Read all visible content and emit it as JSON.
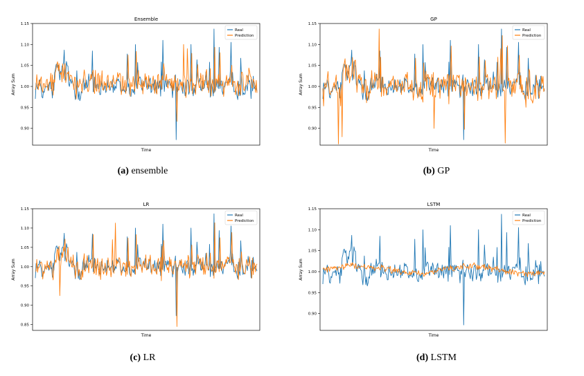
{
  "figure": {
    "captions": [
      {
        "label": "(a)",
        "text": "ensemble"
      },
      {
        "label": "(b)",
        "text": "GP"
      },
      {
        "label": "(c)",
        "text": "LR"
      },
      {
        "label": "(d)",
        "text": "LSTM"
      }
    ]
  },
  "colors": {
    "real": "#1f77b4",
    "prediction": "#ff7f0e"
  },
  "chart_data": [
    {
      "type": "line",
      "title": "Ensemble",
      "xlabel": "Time",
      "ylabel": "Array Sum",
      "ylim": [
        0.86,
        1.15
      ],
      "yticks": [
        "0.90",
        "0.95",
        "1.00",
        "1.05",
        "1.10",
        "1.15"
      ],
      "yticks_values": [
        0.9,
        0.95,
        1.0,
        1.05,
        1.1,
        1.15
      ],
      "legend": "top-right",
      "x": "0..300 (time index, no tick labels)",
      "series": [
        {
          "name": "Real",
          "profile": "real",
          "points": 300
        },
        {
          "name": "Prediction",
          "profile": "ensemble_pred",
          "points": 300
        }
      ],
      "notable_points": [
        {
          "series": "Real",
          "x": 190,
          "y": 0.873
        },
        {
          "series": "Real",
          "x": 241,
          "y": 1.137
        }
      ]
    },
    {
      "type": "line",
      "title": "GP",
      "xlabel": "Time",
      "ylabel": "Array Sum",
      "ylim": [
        0.86,
        1.15
      ],
      "yticks": [
        "0.90",
        "0.95",
        "1.00",
        "1.05",
        "1.10",
        "1.15"
      ],
      "yticks_values": [
        0.9,
        0.95,
        1.0,
        1.05,
        1.1,
        1.15
      ],
      "legend": "top-right",
      "x": "0..300 (time index, no tick labels)",
      "series": [
        {
          "name": "Real",
          "profile": "real",
          "points": 300
        },
        {
          "name": "Prediction",
          "profile": "gp_pred",
          "points": 300
        }
      ],
      "notable_points": [
        {
          "series": "Prediction",
          "x": 21,
          "y": 0.863
        },
        {
          "series": "Prediction",
          "x": 246,
          "y": 0.865
        }
      ]
    },
    {
      "type": "line",
      "title": "LR",
      "xlabel": "Time",
      "ylabel": "Array Sum",
      "ylim": [
        0.835,
        1.15
      ],
      "yticks": [
        "0.85",
        "0.90",
        "0.95",
        "1.00",
        "1.05",
        "1.10",
        "1.15"
      ],
      "yticks_values": [
        0.85,
        0.9,
        0.95,
        1.0,
        1.05,
        1.1,
        1.15
      ],
      "legend": "top-right",
      "x": "0..300 (time index, no tick labels)",
      "series": [
        {
          "name": "Real",
          "profile": "real",
          "points": 300
        },
        {
          "name": "Prediction",
          "profile": "lr_pred",
          "points": 300
        }
      ],
      "notable_points": [
        {
          "series": "Prediction",
          "x": 191,
          "y": 0.845
        },
        {
          "series": "Prediction",
          "x": 108,
          "y": 1.113
        }
      ]
    },
    {
      "type": "line",
      "title": "LSTM",
      "xlabel": "Time",
      "ylabel": "Array Sum",
      "ylim": [
        0.86,
        1.15
      ],
      "yticks": [
        "0.90",
        "0.95",
        "1.00",
        "1.05",
        "1.10",
        "1.15"
      ],
      "yticks_values": [
        0.9,
        0.95,
        1.0,
        1.05,
        1.1,
        1.15
      ],
      "legend": "top-right",
      "x": "0..300 (time index, no tick labels)",
      "series": [
        {
          "name": "Real",
          "profile": "real",
          "points": 300
        },
        {
          "name": "Prediction",
          "profile": "lstm_pred",
          "points": 300
        }
      ],
      "notable_points": [
        {
          "series": "Real",
          "x": 190,
          "y": 0.873
        }
      ]
    }
  ]
}
